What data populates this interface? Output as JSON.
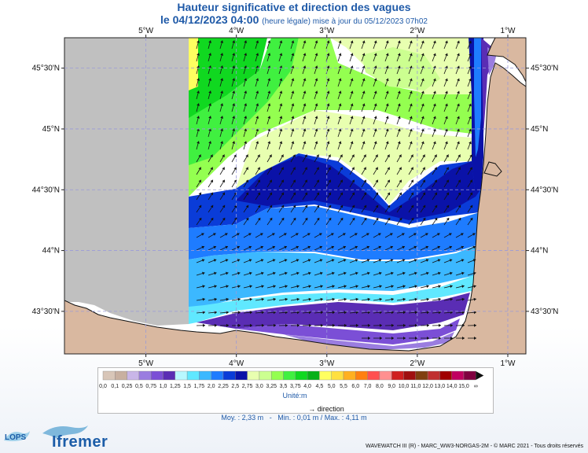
{
  "title": "Hauteur significative et direction des vagues",
  "subtitle": {
    "date": "le 04/12/2023 04:00",
    "note": "(heure légale) mise à jour du 05/12/2023 07h02"
  },
  "map": {
    "lon_ticks": [
      "5°W",
      "4°W",
      "3°W",
      "2°W",
      "1°W"
    ],
    "lat_ticks": [
      "45°30'N",
      "45°N",
      "44°30'N",
      "44°N",
      "43°30'N"
    ],
    "lon_values": [
      -5,
      -4,
      -3,
      -2,
      -1
    ],
    "lat_values": [
      45.5,
      45.0,
      44.5,
      44.0,
      43.5
    ],
    "lon_range": [
      -5.9,
      -0.8
    ],
    "lat_range": [
      43.15,
      45.75
    ]
  },
  "legend": {
    "labels": [
      "0,0",
      "0,1",
      "0,25",
      "0,5",
      "0,75",
      "1,0",
      "1,25",
      "1,5",
      "1,75",
      "2,0",
      "2,25",
      "2,5",
      "2,75",
      "3,0",
      "3,25",
      "3,5",
      "3,75",
      "4,0",
      "4,5",
      "5,0",
      "5,5",
      "6,0",
      "7,0",
      "8,0",
      "9,0",
      "10,0",
      "11,0",
      "12,0",
      "13,0",
      "14,0",
      "15,0",
      "∞"
    ],
    "colors": [
      "#d8c6b8",
      "#c8b0a0",
      "#c9b6e8",
      "#9a7de0",
      "#7b4fd6",
      "#5a2db4",
      "#b8f8ff",
      "#60e8ff",
      "#3cb8ff",
      "#1e7cff",
      "#0a3cd8",
      "#0a12a8",
      "#e8ffb0",
      "#ccff90",
      "#94ff50",
      "#40f040",
      "#10d820",
      "#08b018",
      "#ffff60",
      "#ffe040",
      "#ffb020",
      "#ff8010",
      "#ff5050",
      "#ff9090",
      "#d02020",
      "#a01010",
      "#804010",
      "#c03030",
      "#a00000",
      "#c00060",
      "#800040"
    ],
    "unit": "Unité:m",
    "direction_label": "direction"
  },
  "stats": {
    "moy": "Moy. : 2,33 m",
    "min": "Min. : 0,01 m",
    "max": "Max. : 4,11 m",
    "sep": "-",
    "sep2": "/"
  },
  "footer": "WAVEWATCH III (R) - MARC_WW3-NORGAS-2M - © MARC 2021 - Tous droits réservés",
  "logos": {
    "lops": "LOPS",
    "ifremer": "Ifremer"
  },
  "colors": {
    "title": "#1f5aa8",
    "land": "#d9b8a0",
    "nodata": "#c0c0c0"
  }
}
